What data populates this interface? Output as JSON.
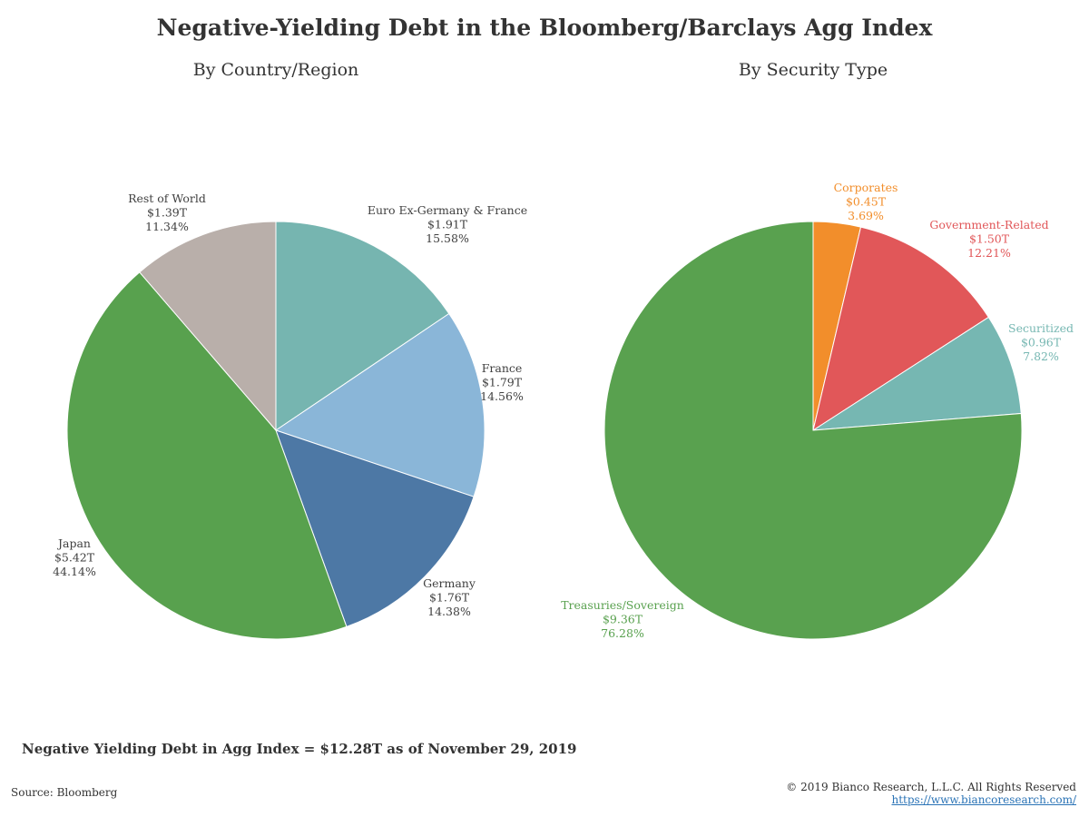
{
  "title": "Negative-Yielding Debt in the Bloomberg/Barclays Agg Index",
  "footnote": "Negative Yielding Debt in Agg Index = $12.28T as of November 29, 2019",
  "source": "Source: Bloomberg",
  "copyright": "© 2019 Bianco Research, L.L.C. All Rights Reserved",
  "link": "https://www.biancoresearch.com/",
  "chart_data": [
    {
      "type": "pie",
      "title": "By Country/Region",
      "slices": [
        {
          "name": "Euro Ex-Germany & France",
          "value": 1.91,
          "value_label": "$1.91T",
          "percent": 15.58,
          "percent_label": "15.58%",
          "color": "#76b5b0",
          "text_color": "#404040"
        },
        {
          "name": "France",
          "value": 1.79,
          "value_label": "$1.79T",
          "percent": 14.56,
          "percent_label": "14.56%",
          "color": "#8ab6d8",
          "text_color": "#404040"
        },
        {
          "name": "Germany",
          "value": 1.76,
          "value_label": "$1.76T",
          "percent": 14.38,
          "percent_label": "14.38%",
          "color": "#4d78a5",
          "text_color": "#404040"
        },
        {
          "name": "Japan",
          "value": 5.42,
          "value_label": "$5.42T",
          "percent": 44.14,
          "percent_label": "44.14%",
          "color": "#58a14e",
          "text_color": "#404040"
        },
        {
          "name": "Rest of World",
          "value": 1.39,
          "value_label": "$1.39T",
          "percent": 11.34,
          "percent_label": "11.34%",
          "color": "#b9afaa",
          "text_color": "#404040"
        }
      ]
    },
    {
      "type": "pie",
      "title": "By Security Type",
      "slices": [
        {
          "name": "Corporates",
          "value": 0.45,
          "value_label": "$0.45T",
          "percent": 3.69,
          "percent_label": "3.69%",
          "color": "#f28e2b",
          "text_color": "#f28e2b"
        },
        {
          "name": "Government-Related",
          "value": 1.5,
          "value_label": "$1.50T",
          "percent": 12.21,
          "percent_label": "12.21%",
          "color": "#e15759",
          "text_color": "#e15759"
        },
        {
          "name": "Securitized",
          "value": 0.96,
          "value_label": "$0.96T",
          "percent": 7.82,
          "percent_label": "7.82%",
          "color": "#76b7b2",
          "text_color": "#76b7b2"
        },
        {
          "name": "Treasuries/Sovereign",
          "value": 9.36,
          "value_label": "$9.36T",
          "percent": 76.28,
          "percent_label": "76.28%",
          "color": "#59a14f",
          "text_color": "#59a14f"
        }
      ]
    }
  ]
}
